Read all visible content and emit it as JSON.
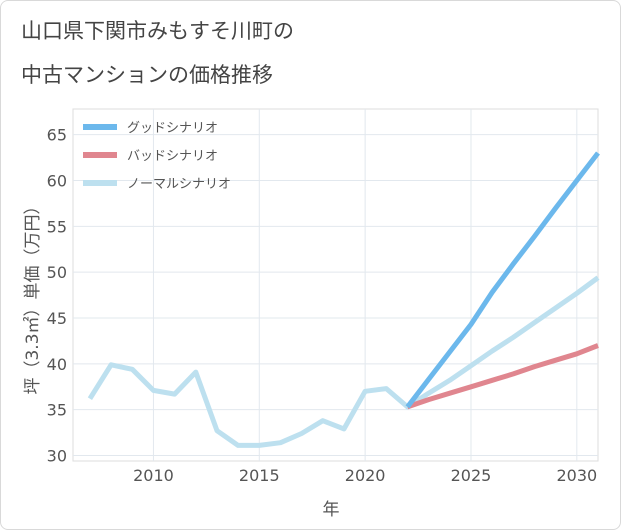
{
  "title_lines": [
    "山口県下関市みもすそ川町の",
    "中古マンションの価格推移"
  ],
  "chart_data": {
    "type": "line",
    "xlabel": "年",
    "ylabel": "坪（3.3㎡）単価（万円）",
    "xlim": [
      2006.2,
      2031
    ],
    "ylim": [
      29.4,
      67.8
    ],
    "x_ticks": [
      2010,
      2015,
      2020,
      2025,
      2030
    ],
    "y_ticks": [
      30,
      35,
      40,
      45,
      50,
      55,
      60,
      65
    ],
    "grid": true,
    "legend_position": "top-left",
    "series": [
      {
        "name": "グッドシナリオ",
        "color": "#6cb8ec",
        "x": [
          2022,
          2023,
          2024,
          2025,
          2026,
          2027,
          2028,
          2029,
          2030,
          2031
        ],
        "values": [
          35.3,
          38.3,
          41.3,
          44.3,
          47.8,
          50.9,
          53.9,
          57.0,
          60.0,
          63.0
        ]
      },
      {
        "name": "バッドシナリオ",
        "color": "#e0868f",
        "x": [
          2022,
          2023,
          2024,
          2025,
          2026,
          2027,
          2028,
          2029,
          2030,
          2031
        ],
        "values": [
          35.3,
          36.1,
          36.8,
          37.5,
          38.2,
          38.9,
          39.7,
          40.4,
          41.1,
          42.0
        ]
      },
      {
        "name": "ノーマルシナリオ",
        "color": "#bde0ef",
        "x": [
          2007,
          2008,
          2009,
          2010,
          2011,
          2012,
          2013,
          2014,
          2015,
          2016,
          2017,
          2018,
          2019,
          2020,
          2021,
          2022,
          2023,
          2024,
          2025,
          2026,
          2027,
          2028,
          2029,
          2030,
          2031
        ],
        "values": [
          36.2,
          39.9,
          39.4,
          37.1,
          36.7,
          39.1,
          32.7,
          31.1,
          31.1,
          31.4,
          32.4,
          33.8,
          32.9,
          37.0,
          37.3,
          35.3,
          36.8,
          38.2,
          39.8,
          41.4,
          42.9,
          44.5,
          46.1,
          47.7,
          49.4
        ]
      }
    ]
  }
}
